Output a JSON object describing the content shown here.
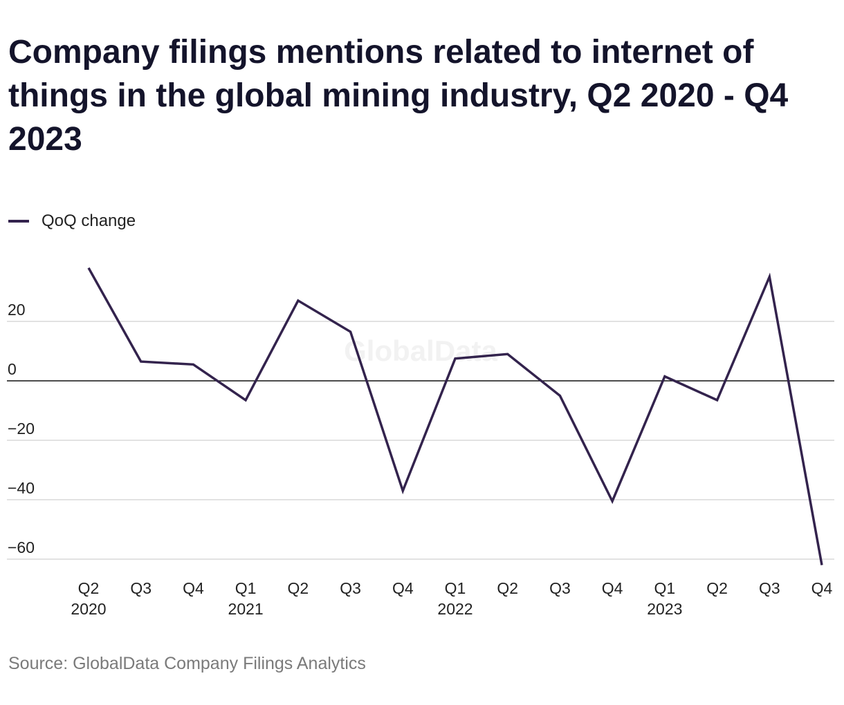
{
  "chart_data": {
    "type": "line",
    "title": "Company filings mentions related to internet of things in the global mining industry, Q2 2020 - Q4 2023",
    "source": "Source: GlobalData Company Filings Analytics",
    "watermark": "GlobalData",
    "legend": {
      "placement": "top-left"
    },
    "x": [
      "Q2",
      "Q3",
      "Q4",
      "Q1",
      "Q2",
      "Q3",
      "Q4",
      "Q1",
      "Q2",
      "Q3",
      "Q4",
      "Q1",
      "Q2",
      "Q3",
      "Q4"
    ],
    "year_labels": [
      "2020",
      "",
      "",
      "2021",
      "",
      "",
      "",
      "2022",
      "",
      "",
      "",
      "2023",
      "",
      "",
      ""
    ],
    "series": [
      {
        "name": "QoQ change",
        "color": "#33234d",
        "values": [
          38,
          6.5,
          5.5,
          -6.5,
          27,
          16.5,
          -37,
          7.5,
          9,
          -5,
          -40.5,
          1.5,
          -6.5,
          35,
          -62
        ]
      }
    ],
    "ylim": [
      -62,
      42
    ],
    "yticks": [
      20,
      0,
      -20,
      -40,
      -60
    ],
    "ytick_labels": [
      "20",
      "0",
      "−20",
      "−40",
      "−60"
    ],
    "grid": true,
    "zero_line_color": "#111111",
    "grid_color": "#d9d9d9"
  }
}
